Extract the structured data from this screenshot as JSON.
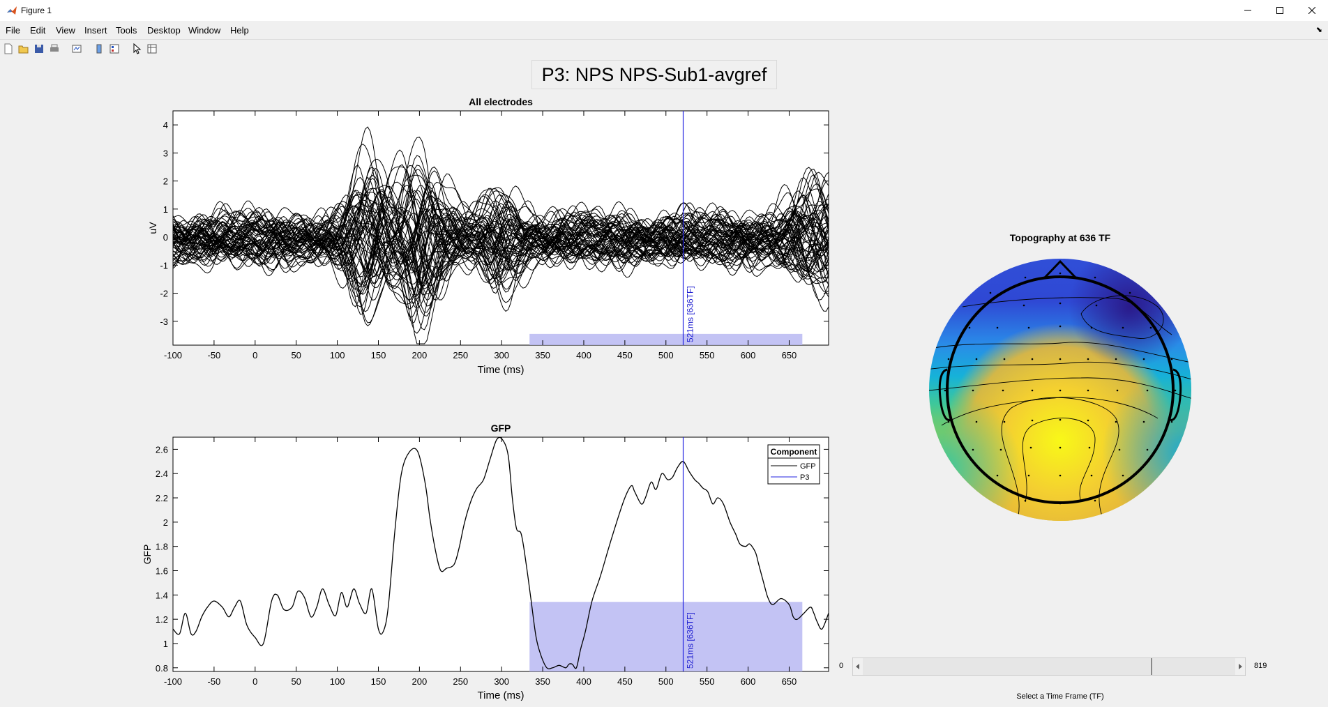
{
  "window": {
    "title": "Figure 1"
  },
  "menus": [
    "File",
    "Edit",
    "View",
    "Insert",
    "Tools",
    "Desktop",
    "Window",
    "Help"
  ],
  "toolbar_icons": [
    "new-figure-icon",
    "open-icon",
    "save-icon",
    "print-icon",
    "link-plot-icon",
    "insert-colorbar-icon",
    "insert-legend-icon",
    "pointer-icon",
    "property-inspector-icon"
  ],
  "figure_title": "P3: NPS NPS-Sub1-avgref",
  "cursor_label": "521ms [636TF]",
  "chart_data": [
    {
      "type": "line",
      "title": "All electrodes",
      "xlabel": "Time (ms)",
      "ylabel": "uV",
      "xlim": [
        -100,
        698
      ],
      "ylim": [
        -3.85,
        4.5
      ],
      "xticks": [
        -100,
        -50,
        0,
        50,
        100,
        150,
        200,
        250,
        300,
        350,
        400,
        450,
        500,
        550,
        600,
        650
      ],
      "yticks": [
        -3,
        -2,
        -1,
        0,
        1,
        2,
        3,
        4
      ],
      "cursor_x": 521,
      "highlight_x": [
        334,
        666
      ],
      "series_count": 64
    },
    {
      "type": "line",
      "title": "GFP",
      "xlabel": "Time (ms)",
      "ylabel": "GFP",
      "xlim": [
        -100,
        698
      ],
      "ylim": [
        0.77,
        2.7
      ],
      "xticks": [
        -100,
        -50,
        0,
        50,
        100,
        150,
        200,
        250,
        300,
        350,
        400,
        450,
        500,
        550,
        600,
        650
      ],
      "yticks": [
        0.8,
        1,
        1.2,
        1.4,
        1.6,
        1.8,
        2,
        2.2,
        2.4,
        2.6
      ],
      "cursor_x": 521,
      "highlight_x": [
        334,
        666
      ],
      "legend": {
        "title": "Component",
        "position": "top-right",
        "entries": [
          "GFP",
          "P3"
        ]
      },
      "series": [
        {
          "name": "GFP",
          "x": [
            -100,
            -92,
            -85,
            -78,
            -72,
            -65,
            -58,
            -50,
            -40,
            -32,
            -25,
            -18,
            -10,
            0,
            10,
            20,
            27,
            35,
            45,
            52,
            60,
            68,
            75,
            82,
            90,
            98,
            105,
            112,
            120,
            127,
            135,
            142,
            150,
            156,
            162,
            170,
            178,
            188,
            198,
            207,
            213,
            220,
            226,
            233,
            242,
            248,
            255,
            263,
            270,
            278,
            286,
            294,
            301,
            308,
            313,
            318,
            324,
            330,
            336,
            342,
            348,
            355,
            362,
            370,
            378,
            382,
            386,
            391,
            396,
            402,
            410,
            420,
            430,
            440,
            450,
            458,
            462,
            470,
            475,
            482,
            488,
            495,
            502,
            508,
            514,
            521,
            528,
            535,
            540,
            545,
            551,
            557,
            563,
            570,
            578,
            585,
            590,
            597,
            602,
            609,
            613,
            619,
            624,
            630,
            640,
            650,
            655,
            660,
            668,
            676,
            680,
            684,
            690,
            698
          ],
          "y": [
            1.12,
            1.08,
            1.25,
            1.08,
            1.1,
            1.22,
            1.3,
            1.35,
            1.3,
            1.22,
            1.3,
            1.35,
            1.15,
            1.05,
            1.0,
            1.35,
            1.4,
            1.28,
            1.3,
            1.43,
            1.38,
            1.22,
            1.3,
            1.45,
            1.32,
            1.23,
            1.42,
            1.3,
            1.45,
            1.33,
            1.25,
            1.45,
            1.12,
            1.1,
            1.3,
            1.92,
            2.4,
            2.58,
            2.58,
            2.32,
            2.02,
            1.75,
            1.6,
            1.62,
            1.65,
            1.78,
            2.0,
            2.18,
            2.28,
            2.35,
            2.52,
            2.68,
            2.68,
            2.55,
            2.2,
            1.95,
            1.9,
            1.65,
            1.35,
            1.05,
            0.9,
            0.8,
            0.8,
            0.82,
            0.8,
            0.83,
            0.83,
            0.8,
            0.95,
            1.1,
            1.35,
            1.55,
            1.78,
            2.0,
            2.2,
            2.3,
            2.25,
            2.15,
            2.2,
            2.33,
            2.27,
            2.4,
            2.35,
            2.37,
            2.45,
            2.5,
            2.42,
            2.35,
            2.32,
            2.28,
            2.25,
            2.15,
            2.2,
            2.15,
            2.0,
            1.9,
            1.82,
            1.8,
            1.82,
            1.75,
            1.65,
            1.5,
            1.38,
            1.32,
            1.37,
            1.32,
            1.22,
            1.2,
            1.25,
            1.3,
            1.25,
            1.18,
            1.12,
            1.25
          ]
        },
        {
          "name": "P3"
        }
      ]
    }
  ],
  "topography": {
    "title": "Topography at 636 TF",
    "colors": [
      "#2a1a8a",
      "#3b6ee8",
      "#1ea8d8",
      "#2cc8a0",
      "#a0d040",
      "#f0c030",
      "#f8f818"
    ]
  },
  "slider": {
    "min": "0",
    "max": "819",
    "caption": "Select a Time Frame (TF)"
  }
}
